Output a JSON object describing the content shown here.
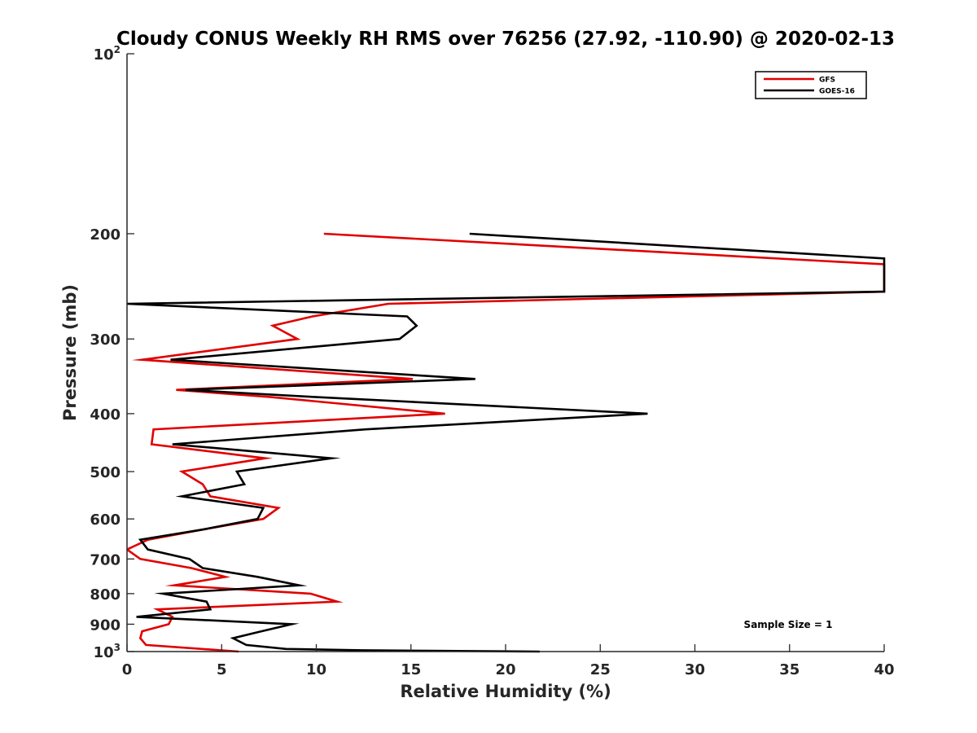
{
  "chart_data": {
    "type": "line",
    "title": "Cloudy CONUS Weekly RH RMS over 76256 (27.92, -110.90) @ 2020-02-13",
    "xlabel": "Relative Humidity (%)",
    "ylabel": "Pressure (mb)",
    "xlim": [
      0,
      40
    ],
    "ylim": [
      100,
      1000
    ],
    "yscale": "log",
    "y_reversed": true,
    "xticks": [
      0,
      5,
      10,
      15,
      20,
      25,
      30,
      35,
      40
    ],
    "xtick_labels": [
      "0",
      "5",
      "10",
      "15",
      "20",
      "25",
      "30",
      "35",
      "40"
    ],
    "yticks": [
      100,
      200,
      300,
      400,
      500,
      600,
      700,
      800,
      900,
      1000
    ],
    "ytick_labels": [
      {
        "base": "10",
        "exp": "2"
      },
      {
        "base": "200",
        "exp": ""
      },
      {
        "base": "300",
        "exp": ""
      },
      {
        "base": "400",
        "exp": ""
      },
      {
        "base": "500",
        "exp": ""
      },
      {
        "base": "600",
        "exp": ""
      },
      {
        "base": "700",
        "exp": ""
      },
      {
        "base": "800",
        "exp": ""
      },
      {
        "base": "900",
        "exp": ""
      },
      {
        "base": "10",
        "exp": "3"
      }
    ],
    "legend_position": "top-right",
    "annotation": "Sample Size = 1",
    "series": [
      {
        "name": "GFS",
        "color": "#e00000",
        "points": [
          [
            10.4,
            200
          ],
          [
            40.0,
            225
          ],
          [
            40.0,
            250
          ],
          [
            13.8,
            262
          ],
          [
            9.8,
            275
          ],
          [
            7.7,
            285
          ],
          [
            9.0,
            300
          ],
          [
            0.8,
            325
          ],
          [
            15.1,
            350
          ],
          [
            2.6,
            365
          ],
          [
            7.5,
            375
          ],
          [
            16.8,
            400
          ],
          [
            1.4,
            425
          ],
          [
            1.3,
            450
          ],
          [
            7.3,
            475
          ],
          [
            2.9,
            500
          ],
          [
            4.0,
            525
          ],
          [
            4.4,
            550
          ],
          [
            8.0,
            575
          ],
          [
            7.2,
            600
          ],
          [
            4.0,
            625
          ],
          [
            1.1,
            650
          ],
          [
            0.0,
            675
          ],
          [
            0.7,
            700
          ],
          [
            3.4,
            725
          ],
          [
            5.2,
            750
          ],
          [
            2.5,
            775
          ],
          [
            9.7,
            800
          ],
          [
            11.1,
            825
          ],
          [
            1.6,
            850
          ],
          [
            2.4,
            875
          ],
          [
            2.2,
            900
          ],
          [
            0.8,
            925
          ],
          [
            0.7,
            950
          ],
          [
            1.0,
            975
          ],
          [
            5.9,
            1000
          ]
        ]
      },
      {
        "name": "GOES-16",
        "color": "#000000",
        "points": [
          [
            18.1,
            200
          ],
          [
            40.0,
            220
          ],
          [
            40.0,
            250
          ],
          [
            0.0,
            262
          ],
          [
            14.8,
            275
          ],
          [
            15.3,
            285
          ],
          [
            14.4,
            300
          ],
          [
            2.3,
            325
          ],
          [
            18.4,
            350
          ],
          [
            3.1,
            365
          ],
          [
            9.8,
            375
          ],
          [
            27.5,
            400
          ],
          [
            12.6,
            425
          ],
          [
            2.4,
            450
          ],
          [
            10.8,
            475
          ],
          [
            5.8,
            500
          ],
          [
            6.2,
            525
          ],
          [
            2.9,
            550
          ],
          [
            7.2,
            575
          ],
          [
            6.9,
            600
          ],
          [
            4.0,
            625
          ],
          [
            0.7,
            650
          ],
          [
            1.1,
            675
          ],
          [
            3.3,
            700
          ],
          [
            4.0,
            725
          ],
          [
            6.9,
            750
          ],
          [
            9.1,
            775
          ],
          [
            1.9,
            800
          ],
          [
            4.2,
            825
          ],
          [
            4.4,
            850
          ],
          [
            0.5,
            875
          ],
          [
            8.7,
            900
          ],
          [
            7.1,
            925
          ],
          [
            5.6,
            950
          ],
          [
            6.3,
            975
          ],
          [
            8.4,
            990
          ],
          [
            12.4,
            995
          ],
          [
            21.8,
            1000
          ]
        ]
      }
    ]
  }
}
